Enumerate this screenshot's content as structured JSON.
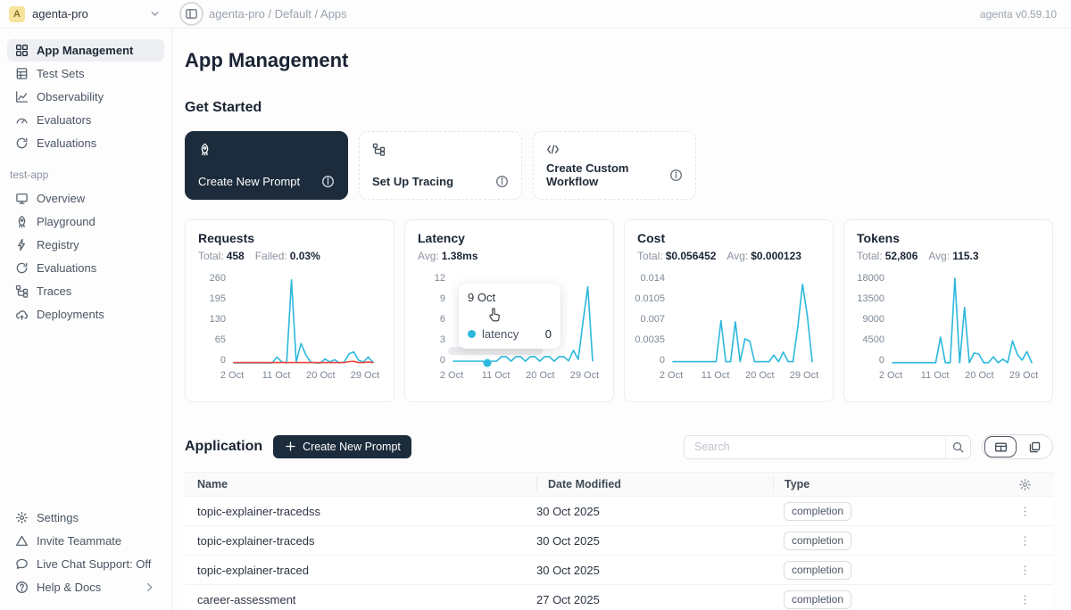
{
  "topbar": {
    "workspace": {
      "avatar_letter": "A",
      "name": "agenta-pro"
    },
    "breadcrumb": "agenta-pro / Default / Apps",
    "version": "agenta v0.59.10"
  },
  "sidebar": {
    "main_items": [
      {
        "icon": "grid",
        "label": "App Management",
        "active": true
      },
      {
        "icon": "test-sets",
        "label": "Test Sets"
      },
      {
        "icon": "observability",
        "label": "Observability"
      },
      {
        "icon": "gauge",
        "label": "Evaluators"
      },
      {
        "icon": "refresh",
        "label": "Evaluations"
      }
    ],
    "section_label": "test-app",
    "app_items": [
      {
        "icon": "monitor",
        "label": "Overview"
      },
      {
        "icon": "rocket",
        "label": "Playground"
      },
      {
        "icon": "bolt",
        "label": "Registry"
      },
      {
        "icon": "refresh",
        "label": "Evaluations"
      },
      {
        "icon": "tree",
        "label": "Traces"
      },
      {
        "icon": "cloud",
        "label": "Deployments"
      }
    ],
    "footer_items": [
      {
        "icon": "gear",
        "label": "Settings"
      },
      {
        "icon": "triangle",
        "label": "Invite Teammate"
      },
      {
        "icon": "chat",
        "label": "Live Chat Support: Off"
      },
      {
        "icon": "help",
        "label": "Help & Docs",
        "chevron": true
      }
    ]
  },
  "main": {
    "title": "App Management",
    "get_started": {
      "heading": "Get Started",
      "cards": [
        {
          "icon": "rocket",
          "label": "Create New Prompt",
          "dark": true
        },
        {
          "icon": "tree",
          "label": "Set Up Tracing"
        },
        {
          "icon": "code",
          "label": "Create Custom Workflow"
        }
      ]
    },
    "application": {
      "heading": "Application",
      "create_button_label": "Create New Prompt",
      "search_placeholder": "Search",
      "table": {
        "headers": [
          "Name",
          "Date Modified",
          "Type"
        ],
        "rows": [
          {
            "name": "topic-explainer-tracedss",
            "date": "30 Oct 2025",
            "type": "completion"
          },
          {
            "name": "topic-explainer-traceds",
            "date": "30 Oct 2025",
            "type": "completion"
          },
          {
            "name": "topic-explainer-traced",
            "date": "30 Oct 2025",
            "type": "completion"
          },
          {
            "name": "career-assessment",
            "date": "27 Oct 2025",
            "type": "completion"
          }
        ]
      }
    }
  },
  "colors": {
    "accent_dark": "#1c2c3c",
    "line_cyan": "#2cb8dc",
    "line_red": "#e8453d"
  },
  "chart_data": [
    {
      "type": "line",
      "title": "Requests",
      "stats": [
        {
          "label": "Total:",
          "value": "458"
        },
        {
          "label": "Failed:",
          "value": "0.03%"
        }
      ],
      "yticks": [
        0,
        65,
        130,
        195,
        260
      ],
      "ylim": [
        0,
        260
      ],
      "xticks": [
        "2 Oct",
        "11 Oct",
        "20 Oct",
        "29 Oct"
      ],
      "xtick_indices": [
        0,
        9,
        18,
        27
      ],
      "series": [
        {
          "name": "requests",
          "color": "#2cb8dc",
          "values": [
            0,
            0,
            0,
            0,
            0,
            0,
            0,
            0,
            0,
            18,
            3,
            0,
            255,
            3,
            60,
            25,
            3,
            0,
            0,
            12,
            3,
            10,
            0,
            3,
            28,
            34,
            8,
            3,
            18,
            2
          ]
        },
        {
          "name": "failed",
          "color": "#e8453d",
          "values": [
            1,
            1,
            1,
            1,
            1,
            1,
            1,
            1,
            1,
            1,
            1,
            1,
            1,
            1,
            1,
            1,
            1,
            1,
            1,
            1,
            1,
            1,
            1,
            1,
            4,
            5,
            1,
            1,
            3,
            1
          ]
        }
      ]
    },
    {
      "type": "line",
      "title": "Latency",
      "stats": [
        {
          "label": "Avg:",
          "value": "1.38ms"
        }
      ],
      "yticks": [
        0,
        3,
        6,
        9,
        12
      ],
      "ylim": [
        0,
        12
      ],
      "xticks": [
        "2 Oct",
        "11 Oct",
        "20 Oct",
        "29 Oct"
      ],
      "xtick_indices": [
        0,
        9,
        18,
        27
      ],
      "series": [
        {
          "name": "latency",
          "color": "#2cb8dc",
          "values": [
            0.25,
            0.25,
            0.25,
            0.25,
            0.25,
            0.25,
            0.25,
            0,
            0.25,
            0.25,
            0.9,
            0.9,
            0.25,
            0.9,
            0.9,
            0.25,
            0.9,
            0.9,
            0.25,
            0.9,
            0.9,
            0.25,
            0.9,
            0.9,
            0.3,
            1.8,
            0.5,
            5.8,
            10.8,
            0.3
          ]
        }
      ],
      "tooltip": {
        "date": "9 Oct",
        "series_label": "latency",
        "value": "0",
        "point_index": 7
      }
    },
    {
      "type": "line",
      "title": "Cost",
      "stats": [
        {
          "label": "Total:",
          "value": "$0.056452"
        },
        {
          "label": "Avg:",
          "value": "$0.000123"
        }
      ],
      "yticks": [
        0,
        0.0035,
        0.007,
        0.0105,
        0.014
      ],
      "ylim": [
        0,
        0.014
      ],
      "xticks": [
        "2 Oct",
        "11 Oct",
        "20 Oct",
        "29 Oct"
      ],
      "xtick_indices": [
        0,
        9,
        18,
        27
      ],
      "series": [
        {
          "name": "cost",
          "color": "#2cb8dc",
          "values": [
            0.0002,
            0.0002,
            0.0002,
            0.0002,
            0.0002,
            0.0002,
            0.0002,
            0.0002,
            0.0002,
            0.0002,
            0.007,
            0.0002,
            0.0002,
            0.0068,
            0.0002,
            0.004,
            0.0036,
            0.0002,
            0.0002,
            0.0002,
            0.0002,
            0.0013,
            0.0002,
            0.0018,
            0.0002,
            0.0002,
            0.006,
            0.013,
            0.0078,
            0.0002
          ]
        }
      ]
    },
    {
      "type": "line",
      "title": "Tokens",
      "stats": [
        {
          "label": "Total:",
          "value": "52,806"
        },
        {
          "label": "Avg:",
          "value": "115.3"
        }
      ],
      "yticks": [
        0,
        4500,
        9000,
        13500,
        18000
      ],
      "ylim": [
        0,
        18000
      ],
      "xticks": [
        "2 Oct",
        "11 Oct",
        "20 Oct",
        "29 Oct"
      ],
      "xtick_indices": [
        0,
        9,
        18,
        27
      ],
      "series": [
        {
          "name": "tokens",
          "color": "#2cb8dc",
          "values": [
            50,
            50,
            50,
            50,
            50,
            50,
            50,
            50,
            50,
            50,
            5500,
            50,
            50,
            18000,
            50,
            11800,
            50,
            2100,
            1900,
            50,
            50,
            1300,
            50,
            800,
            50,
            4700,
            1800,
            600,
            2400,
            50
          ]
        }
      ]
    }
  ]
}
